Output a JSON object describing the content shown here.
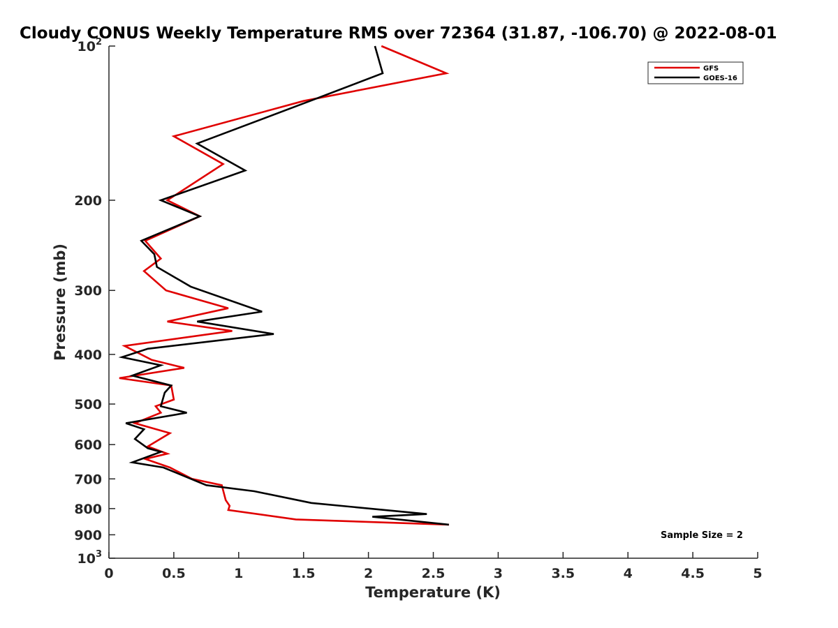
{
  "chart_data": {
    "type": "line",
    "title": "Cloudy CONUS Weekly Temperature RMS over 72364 (31.87, -106.70) @ 2022-08-01",
    "xlabel": "Temperature (K)",
    "ylabel": "Pressure (mb)",
    "xlim": [
      0,
      5
    ],
    "ylim": [
      100,
      1000
    ],
    "y_scale": "log",
    "y_reversed": true,
    "x_ticks": [
      0,
      0.5,
      1,
      1.5,
      2,
      2.5,
      3,
      3.5,
      4,
      4.5,
      5
    ],
    "x_tick_labels": [
      "0",
      "0.5",
      "1",
      "1.5",
      "2",
      "2.5",
      "3",
      "3.5",
      "4",
      "4.5",
      "5"
    ],
    "y_ticks": [
      {
        "value": 100,
        "base": "10",
        "exp": "2"
      },
      {
        "value": 200,
        "label": "200"
      },
      {
        "value": 300,
        "label": "300"
      },
      {
        "value": 400,
        "label": "400"
      },
      {
        "value": 500,
        "label": "500"
      },
      {
        "value": 600,
        "label": "600"
      },
      {
        "value": 700,
        "label": "700"
      },
      {
        "value": 800,
        "label": "800"
      },
      {
        "value": 900,
        "label": "900"
      },
      {
        "value": 1000,
        "base": "10",
        "exp": "3"
      }
    ],
    "grid": false,
    "legend_position": "top-right",
    "annotation": "Sample Size = 2",
    "series": [
      {
        "name": "GFS",
        "color": "#e00000",
        "points": [
          [
            2.1,
            100
          ],
          [
            2.6,
            113
          ],
          [
            1.5,
            128
          ],
          [
            0.5,
            150
          ],
          [
            0.88,
            170
          ],
          [
            0.45,
            200
          ],
          [
            0.7,
            215
          ],
          [
            0.28,
            240
          ],
          [
            0.4,
            260
          ],
          [
            0.27,
            275
          ],
          [
            0.44,
            300
          ],
          [
            0.92,
            325
          ],
          [
            0.45,
            345
          ],
          [
            0.95,
            360
          ],
          [
            0.12,
            385
          ],
          [
            0.33,
            410
          ],
          [
            0.58,
            425
          ],
          [
            0.08,
            445
          ],
          [
            0.48,
            460
          ],
          [
            0.5,
            490
          ],
          [
            0.36,
            505
          ],
          [
            0.4,
            520
          ],
          [
            0.2,
            545
          ],
          [
            0.47,
            570
          ],
          [
            0.3,
            605
          ],
          [
            0.45,
            625
          ],
          [
            0.28,
            640
          ],
          [
            0.47,
            665
          ],
          [
            0.64,
            700
          ],
          [
            0.87,
            720
          ],
          [
            0.9,
            770
          ],
          [
            0.93,
            790
          ],
          [
            0.92,
            805
          ],
          [
            1.44,
            840
          ],
          [
            2.62,
            860
          ]
        ]
      },
      {
        "name": "GOES-16",
        "color": "#000000",
        "points": [
          [
            2.05,
            100
          ],
          [
            2.11,
            113
          ],
          [
            1.55,
            128
          ],
          [
            0.68,
            155
          ],
          [
            1.05,
            175
          ],
          [
            0.4,
            200
          ],
          [
            0.7,
            215
          ],
          [
            0.25,
            240
          ],
          [
            0.35,
            255
          ],
          [
            0.37,
            270
          ],
          [
            0.63,
            295
          ],
          [
            1.18,
            330
          ],
          [
            0.68,
            345
          ],
          [
            1.27,
            365
          ],
          [
            0.3,
            390
          ],
          [
            0.1,
            405
          ],
          [
            0.4,
            420
          ],
          [
            0.18,
            440
          ],
          [
            0.48,
            460
          ],
          [
            0.43,
            475
          ],
          [
            0.4,
            505
          ],
          [
            0.6,
            520
          ],
          [
            0.13,
            545
          ],
          [
            0.27,
            560
          ],
          [
            0.2,
            585
          ],
          [
            0.3,
            610
          ],
          [
            0.4,
            620
          ],
          [
            0.18,
            650
          ],
          [
            0.42,
            665
          ],
          [
            0.75,
            720
          ],
          [
            1.12,
            740
          ],
          [
            1.56,
            780
          ],
          [
            2.45,
            820
          ],
          [
            2.03,
            830
          ],
          [
            2.62,
            860
          ]
        ]
      }
    ]
  }
}
